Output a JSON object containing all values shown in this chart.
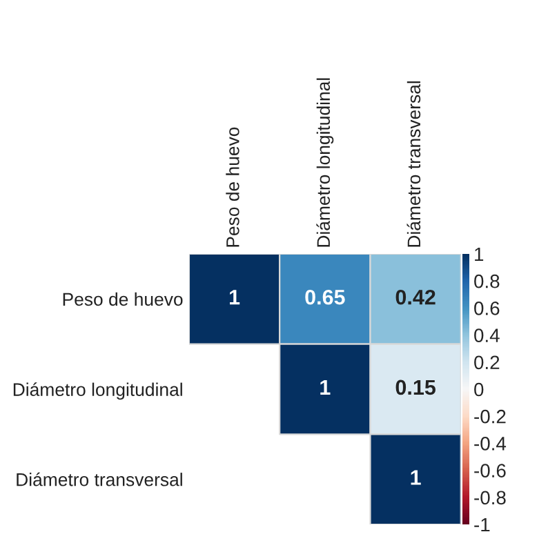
{
  "chart_data": {
    "type": "heatmap",
    "categories": [
      "Peso de huevo",
      "Diámetro longitudinal",
      "Diámetro transversal"
    ],
    "y_categories": [
      "Peso de huevo",
      "Diámetro longitudinal",
      "Diámetro transversal"
    ],
    "cells": [
      [
        1,
        0.65,
        0.42
      ],
      [
        null,
        1,
        0.15
      ],
      [
        null,
        null,
        1
      ]
    ],
    "data_labels": true,
    "clim": [
      -1,
      1
    ],
    "cticks": [
      -1,
      -0.8,
      -0.6,
      -0.4,
      -0.2,
      0,
      0.2,
      0.4,
      0.6,
      0.8,
      1
    ]
  }
}
